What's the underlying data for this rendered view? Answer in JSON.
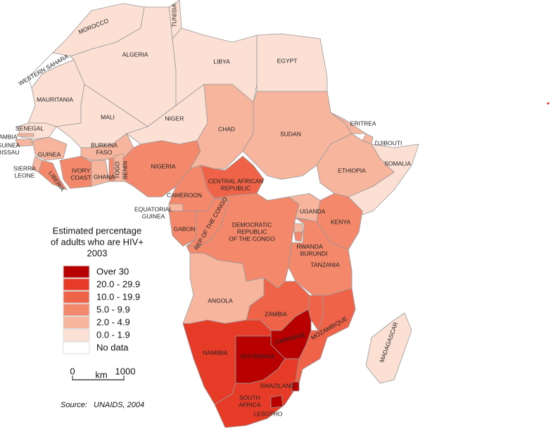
{
  "legend": {
    "title": [
      "Estimated percentage",
      "of adults who are HIV+",
      "2003"
    ],
    "items": [
      {
        "label": "Over 30",
        "color": "#b80000"
      },
      {
        "label": "20.0 - 29.9",
        "color": "#e63b27"
      },
      {
        "label": "10.0 - 19.9",
        "color": "#ef6448"
      },
      {
        "label": "5.0 - 9.9",
        "color": "#f3886b"
      },
      {
        "label": "2.0 - 4.9",
        "color": "#f7b59d"
      },
      {
        "label": "0.0 - 1.9",
        "color": "#fce0d4"
      },
      {
        "label": "No data",
        "color": "#ffffff"
      }
    ]
  },
  "scale": {
    "start": "0",
    "unit": "km",
    "end": "1000"
  },
  "source": {
    "label": "Source:",
    "value": "UNAIDS, 2004"
  },
  "countries": [
    {
      "name": [
        "MOROCCO"
      ],
      "class": 5
    },
    {
      "name": [
        "WESTERN SAHARA"
      ],
      "class": 6
    },
    {
      "name": [
        "ALGERIA"
      ],
      "class": 5
    },
    {
      "name": [
        "TUNISIA"
      ],
      "class": 5
    },
    {
      "name": [
        "LIBYA"
      ],
      "class": 5
    },
    {
      "name": [
        "EGYPT"
      ],
      "class": 5
    },
    {
      "name": [
        "MAURITANIA"
      ],
      "class": 5
    },
    {
      "name": [
        "MALI"
      ],
      "class": 5
    },
    {
      "name": [
        "NIGER"
      ],
      "class": 5
    },
    {
      "name": [
        "SENEGAL"
      ],
      "class": 5
    },
    {
      "name": [
        "GAMBIA"
      ],
      "class": 4
    },
    {
      "name": [
        "GUINEA",
        "BISSAU"
      ],
      "class": 4
    },
    {
      "name": [
        "GUINEA"
      ],
      "class": 4
    },
    {
      "name": [
        "SIERRA",
        "LEONE"
      ],
      "class": 4
    },
    {
      "name": [
        "LIBERIA"
      ],
      "class": 3
    },
    {
      "name": [
        "IVORY",
        "COAST"
      ],
      "class": 3
    },
    {
      "name": [
        "BURKINA",
        "FASO"
      ],
      "class": 4
    },
    {
      "name": [
        "GHANA"
      ],
      "class": 4
    },
    {
      "name": [
        "TOGO"
      ],
      "class": 3
    },
    {
      "name": [
        "BENIN"
      ],
      "class": 4
    },
    {
      "name": [
        "NIGERIA"
      ],
      "class": 3
    },
    {
      "name": [
        "CHAD"
      ],
      "class": 4
    },
    {
      "name": [
        "SUDAN"
      ],
      "class": 4
    },
    {
      "name": [
        "ERITREA"
      ],
      "class": 4
    },
    {
      "name": [
        "DJIBOUTI"
      ],
      "class": 4
    },
    {
      "name": [
        "ETHIOPIA"
      ],
      "class": 4
    },
    {
      "name": [
        "SOMALIA"
      ],
      "class": 5
    },
    {
      "name": [
        "CENTRAL AFRICAN",
        "REPUBLIC"
      ],
      "class": 2
    },
    {
      "name": [
        "CAMEROON"
      ],
      "class": 3
    },
    {
      "name": [
        "EQUATORIAL",
        "GUINEA"
      ],
      "class": 4
    },
    {
      "name": [
        "GABON"
      ],
      "class": 3
    },
    {
      "name": [
        "REP OF THE CONGO"
      ],
      "class": 3
    },
    {
      "name": [
        "DEMOCRATIC",
        "REPUBLIC",
        "OF THE CONGO"
      ],
      "class": 3
    },
    {
      "name": [
        "UGANDA"
      ],
      "class": 4
    },
    {
      "name": [
        "KENYA"
      ],
      "class": 3
    },
    {
      "name": [
        "RWANDA"
      ],
      "class": 4
    },
    {
      "name": [
        "BURUNDI"
      ],
      "class": 3
    },
    {
      "name": [
        "TANZANIA"
      ],
      "class": 3
    },
    {
      "name": [
        "ANGOLA"
      ],
      "class": 4
    },
    {
      "name": [
        "ZAMBIA"
      ],
      "class": 2
    },
    {
      "name": null,
      "class": 2
    },
    {
      "name": [
        "MOZAMBIQUE"
      ],
      "class": 2
    },
    {
      "name": [
        "ZIMBABWE"
      ],
      "class": 0
    },
    {
      "name": [
        "NAMIBIA"
      ],
      "class": 1
    },
    {
      "name": [
        "BOTSWANA"
      ],
      "class": 0
    },
    {
      "name": [
        "SOUTH",
        "AFRICA"
      ],
      "class": 1
    },
    {
      "name": [
        "SWAZILAND"
      ],
      "class": 0
    },
    {
      "name": [
        "LESOTHO"
      ],
      "class": 0
    },
    {
      "name": [
        "MADAGASCAR"
      ],
      "class": 5
    }
  ]
}
